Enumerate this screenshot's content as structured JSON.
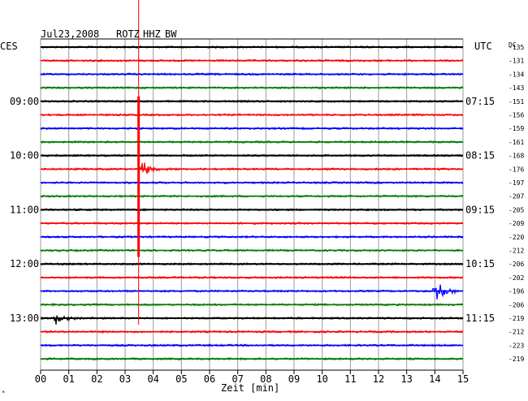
{
  "header": {
    "date": "Jul23,2008",
    "station": "ROTZ",
    "channel": "HHZ",
    "filter": "BW",
    "left_tz": "CES",
    "right_tz": "UTC",
    "dc_label": "DC"
  },
  "chart_data": {
    "type": "line",
    "title": "Jul23,2008 ROTZ HHZ BW",
    "xlabel": "Zeit [min]",
    "xlim": [
      0,
      15
    ],
    "x_ticks": [
      "00",
      "01",
      "02",
      "03",
      "04",
      "05",
      "06",
      "07",
      "08",
      "09",
      "10",
      "11",
      "12",
      "13",
      "14",
      "15"
    ],
    "left_time_labels": [
      {
        "row": 4,
        "text": "09:00"
      },
      {
        "row": 8,
        "text": "10:00"
      },
      {
        "row": 12,
        "text": "11:00"
      },
      {
        "row": 16,
        "text": "12:00"
      },
      {
        "row": 20,
        "text": "13:00"
      }
    ],
    "right_time_labels": [
      {
        "row": 4,
        "text": "07:15"
      },
      {
        "row": 8,
        "text": "08:15"
      },
      {
        "row": 12,
        "text": "09:15"
      },
      {
        "row": 16,
        "text": "10:15"
      },
      {
        "row": 20,
        "text": "11:15"
      }
    ],
    "trace_colors": [
      "#000000",
      "#ff0000",
      "#0000ff",
      "#007a00"
    ],
    "dc_offsets": [
      -135,
      -131,
      -134,
      -143,
      -151,
      -156,
      -159,
      -161,
      -168,
      -176,
      -197,
      -207,
      -205,
      -209,
      -220,
      -212,
      -206,
      -202,
      -196,
      -206,
      -219,
      -212,
      -223,
      -219
    ],
    "events": [
      {
        "row": 0,
        "minute": 3.48,
        "amplitude": 80,
        "label": "marker"
      },
      {
        "row": 9,
        "minute": 3.55,
        "amplitude": 12
      },
      {
        "row": 18,
        "minute": 14.0,
        "amplitude": 14
      },
      {
        "row": 20,
        "minute": 0.5,
        "amplitude": 10
      }
    ]
  }
}
